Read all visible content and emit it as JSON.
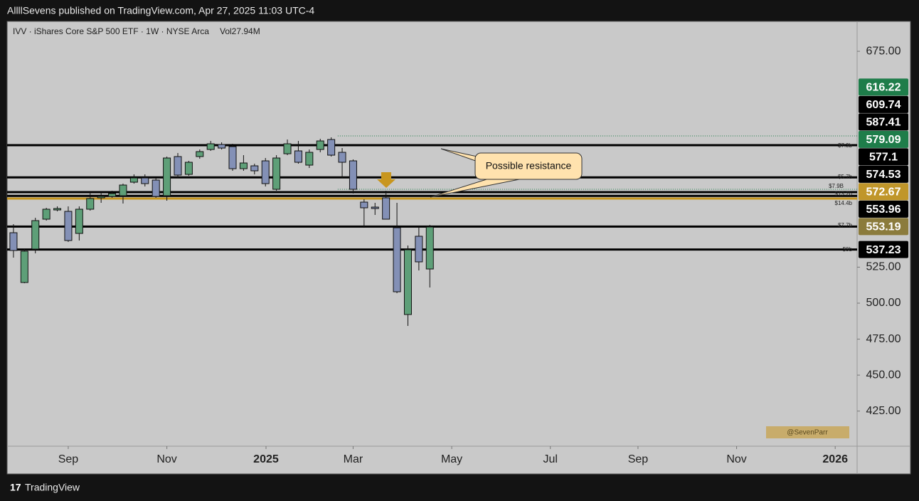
{
  "header": "AllllSevens published on TradingView.com, Apr 27, 2025 11:03 UTC-4",
  "footer": "TradingView",
  "chart_data": {
    "type": "candlestick",
    "title": "IVV · iShares Core S&P 500 ETF · 1W · NYSE Arca",
    "volume_label": "Vol27.94M",
    "open": [
      548.94,
      514.34,
      537.57,
      558.34,
      564.76,
      563.77,
      548.45,
      565.26,
      573.17,
      574.15,
      574.65,
      584.04,
      587.01,
      585.52,
      574.65,
      601.84,
      589.48,
      601.84,
      606.78,
      610.24,
      608.76,
      593.43,
      595.41,
      598.87,
      579.1,
      603.82,
      605.79,
      595.91,
      606.78,
      613.7,
      604.8,
      598.87,
      570.2,
      566.74,
      573.17,
      552.4,
      492.09,
      546.47,
      523.73
    ],
    "high": [
      554.87,
      537.57,
      559.32,
      566.25,
      567.23,
      567.23,
      567.23,
      577.12,
      577.12,
      578.11,
      583.05,
      589.48,
      589.48,
      587.01,
      601.84,
      604.31,
      598.87,
      606.78,
      612.71,
      611.72,
      610.74,
      602.83,
      596.89,
      600.85,
      602.83,
      613.7,
      612.71,
      606.78,
      614.2,
      615.18,
      607.77,
      599.86,
      572.18,
      569.71,
      578.11,
      569.71,
      540.05,
      553.39,
      554.38
    ],
    "low": [
      531.64,
      513.85,
      534.61,
      557.35,
      563.77,
      542.52,
      543.51,
      564.27,
      569.71,
      573.17,
      569.21,
      583.05,
      581.08,
      573.17,
      571.19,
      587.01,
      588.49,
      600.35,
      605.79,
      606.78,
      591.95,
      591.95,
      589.48,
      581.08,
      578.11,
      602.83,
      596.89,
      593.93,
      604.8,
      601.84,
      587.01,
      576.13,
      552.4,
      561.3,
      558.34,
      506.92,
      484.18,
      522.74,
      510.88
    ],
    "close": [
      536.58,
      536.09,
      557.35,
      565.26,
      565.75,
      543.51,
      565.26,
      572.67,
      574.15,
      576.13,
      582.06,
      587.01,
      583.05,
      574.15,
      600.85,
      588.98,
      597.88,
      605.3,
      610.74,
      607.77,
      593.43,
      597.39,
      591.95,
      583.05,
      600.85,
      610.74,
      597.88,
      604.8,
      612.71,
      602.83,
      597.88,
      579.1,
      566.25,
      565.75,
      558.34,
      507.91,
      537.08,
      528.68,
      552.9
    ],
    "up_color": "#5e9f78",
    "down_color": "#8390b6",
    "xlim": [
      -0.58,
      77
    ],
    "xticks": [
      {
        "value": 5,
        "label": "Sep"
      },
      {
        "value": 14,
        "label": "Nov"
      },
      {
        "value": 23.05,
        "label": "2025"
      },
      {
        "value": 31,
        "label": "Mar"
      },
      {
        "value": 40,
        "label": "May"
      },
      {
        "value": 49,
        "label": "Jul"
      },
      {
        "value": 57,
        "label": "Sep"
      },
      {
        "value": 66,
        "label": "Nov"
      },
      {
        "value": 75,
        "label": "2026"
      }
    ],
    "ylim": [
      400.6,
      695.8
    ],
    "yticks": [
      {
        "value": 425,
        "label": "425.00"
      },
      {
        "value": 450,
        "label": "450.00"
      },
      {
        "value": 475,
        "label": "475.00"
      },
      {
        "value": 500,
        "label": "500.00"
      },
      {
        "value": 525,
        "label": "525.00"
      },
      {
        "value": 675,
        "label": "675.00"
      }
    ],
    "levels": [
      {
        "value": 609.74,
        "color": "#000000"
      },
      {
        "value": 587.41,
        "color": "#000000"
      },
      {
        "value": 577.1,
        "color": "#000000"
      },
      {
        "value": 574.53,
        "color": "#000000"
      },
      {
        "value": 572.67,
        "color": "#c8961e"
      },
      {
        "value": 553.19,
        "color": "#000000"
      },
      {
        "value": 537.23,
        "color": "#000000"
      }
    ],
    "price_labels": [
      {
        "value": 616.22,
        "color": "#1e7d4a",
        "dotted": true
      },
      {
        "value": 609.74,
        "color": "#000000"
      },
      {
        "value": 587.41,
        "color": "#000000"
      },
      {
        "value": 579.09,
        "color": "#1e7d4a",
        "dotted": true
      },
      {
        "value": 577.1,
        "color": "#000000"
      },
      {
        "value": 574.53,
        "color": "#000000"
      },
      {
        "value": 572.67,
        "color": "#c0962a"
      },
      {
        "value": 553.96,
        "color": "#000000"
      },
      {
        "value": 553.19,
        "color": "#8b7b3c"
      },
      {
        "value": 537.23,
        "color": "#000000"
      }
    ],
    "annotation": "Possible resistance",
    "profile_labels": [
      "$7.3b",
      "$5.7b",
      "$7.9B",
      "$13.2b",
      "$14.4b",
      "$7.7b",
      "$9b"
    ],
    "watermark": "@SevenParr"
  }
}
